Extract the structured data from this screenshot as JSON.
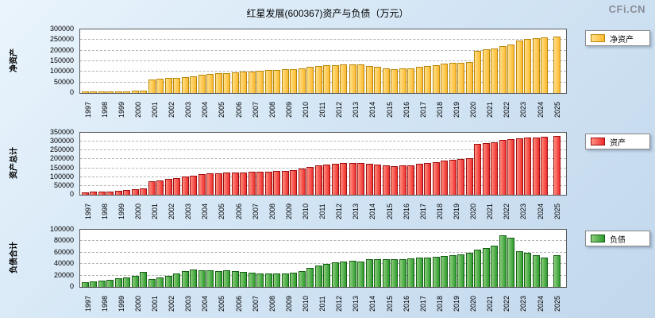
{
  "page": {
    "title": "红星发展(600367)资产与负债（万元）",
    "watermark": "CFi.CN"
  },
  "chart_data": [
    {
      "type": "bar",
      "ylabel": "净资产",
      "legend": "净资产",
      "color_fill": "#ffb92e",
      "color_light": "#ffe089",
      "color_edge": "#b8860b",
      "ylim": [
        0,
        300000
      ],
      "ytick_step": 50000,
      "grid": true,
      "legend_position": "right-top",
      "categories": [
        "1997",
        "1998",
        "1999",
        "2000",
        "2001",
        "2002",
        "2003",
        "2004",
        "2005",
        "2006",
        "2007",
        "2008",
        "2009",
        "2010",
        "2011",
        "2012",
        "2013",
        "2014",
        "2015",
        "2016",
        "2017",
        "2018",
        "2019",
        "2020",
        "2021",
        "2022",
        "2023",
        "2024",
        "2025"
      ],
      "values_per_year": [
        [
          6000,
          6500
        ],
        [
          7000,
          7500
        ],
        [
          8000,
          9000
        ],
        [
          10000,
          11000
        ],
        [
          62000,
          66000
        ],
        [
          70000,
          73000
        ],
        [
          76000,
          80000
        ],
        [
          86000,
          90000
        ],
        [
          93000,
          95000
        ],
        [
          97000,
          100000
        ],
        [
          103000,
          106000
        ],
        [
          108000,
          110000
        ],
        [
          111000,
          114000
        ],
        [
          118000,
          122000
        ],
        [
          127000,
          130000
        ],
        [
          132000,
          134000
        ],
        [
          135000,
          136000
        ],
        [
          128000,
          122000
        ],
        [
          116000,
          114000
        ],
        [
          115000,
          118000
        ],
        [
          123000,
          128000
        ],
        [
          133000,
          138000
        ],
        [
          141000,
          144000
        ],
        [
          146000,
          200000
        ],
        [
          205000,
          210000
        ],
        [
          222000,
          230000
        ],
        [
          248000,
          254000
        ],
        [
          258000,
          263000
        ],
        [
          268000
        ]
      ]
    },
    {
      "type": "bar",
      "ylabel": "资产总计",
      "legend": "资产",
      "color_fill": "#ee2c2c",
      "color_light": "#ff9080",
      "color_edge": "#9c1010",
      "ylim": [
        0,
        350000
      ],
      "ytick_step": 50000,
      "grid": true,
      "legend_position": "right-top",
      "categories": [
        "1997",
        "1998",
        "1999",
        "2000",
        "2001",
        "2002",
        "2003",
        "2004",
        "2005",
        "2006",
        "2007",
        "2008",
        "2009",
        "2010",
        "2011",
        "2012",
        "2013",
        "2014",
        "2015",
        "2016",
        "2017",
        "2018",
        "2019",
        "2020",
        "2021",
        "2022",
        "2023",
        "2024",
        "2025"
      ],
      "values_per_year": [
        [
          14000,
          16000
        ],
        [
          18000,
          20000
        ],
        [
          23000,
          26000
        ],
        [
          30000,
          38000
        ],
        [
          76000,
          82000
        ],
        [
          90000,
          96000
        ],
        [
          104000,
          110000
        ],
        [
          115000,
          119000
        ],
        [
          121000,
          124000
        ],
        [
          125000,
          126000
        ],
        [
          128000,
          130000
        ],
        [
          131000,
          133000
        ],
        [
          135000,
          139000
        ],
        [
          146000,
          155000
        ],
        [
          164000,
          170000
        ],
        [
          175000,
          179000
        ],
        [
          181000,
          181000
        ],
        [
          176000,
          170000
        ],
        [
          165000,
          163000
        ],
        [
          164000,
          168000
        ],
        [
          174000,
          179000
        ],
        [
          186000,
          192000
        ],
        [
          197000,
          201000
        ],
        [
          206000,
          288000
        ],
        [
          292000,
          298000
        ],
        [
          308000,
          315000
        ],
        [
          318000,
          322000
        ],
        [
          324000,
          328000
        ],
        [
          331000
        ]
      ]
    },
    {
      "type": "bar",
      "ylabel": "负债合计",
      "legend": "负债",
      "color_fill": "#2e9b2e",
      "color_light": "#8fce7e",
      "color_edge": "#156015",
      "ylim": [
        0,
        100000
      ],
      "ytick_step": 20000,
      "grid": true,
      "legend_position": "right-top",
      "categories": [
        "1997",
        "1998",
        "1999",
        "2000",
        "2001",
        "2002",
        "2003",
        "2004",
        "2005",
        "2006",
        "2007",
        "2008",
        "2009",
        "2010",
        "2011",
        "2012",
        "2013",
        "2014",
        "2015",
        "2016",
        "2017",
        "2018",
        "2019",
        "2020",
        "2021",
        "2022",
        "2023",
        "2024",
        "2025"
      ],
      "values_per_year": [
        [
          8000,
          9500
        ],
        [
          11000,
          12500
        ],
        [
          15000,
          17000
        ],
        [
          20000,
          27000
        ],
        [
          14000,
          16000
        ],
        [
          20000,
          23000
        ],
        [
          28000,
          30000
        ],
        [
          29000,
          29000
        ],
        [
          28000,
          29000
        ],
        [
          28000,
          26000
        ],
        [
          25000,
          24000
        ],
        [
          23000,
          23000
        ],
        [
          24000,
          25000
        ],
        [
          28000,
          33000
        ],
        [
          37000,
          40000
        ],
        [
          43000,
          45000
        ],
        [
          46000,
          45000
        ],
        [
          48000,
          48000
        ],
        [
          49000,
          49000
        ],
        [
          49000,
          50000
        ],
        [
          51000,
          51000
        ],
        [
          53000,
          54000
        ],
        [
          56000,
          57000
        ],
        [
          60000,
          65000
        ],
        [
          68000,
          72000
        ],
        [
          90000,
          86000
        ],
        [
          63000,
          60000
        ],
        [
          55000,
          52000
        ],
        [
          55000
        ]
      ]
    }
  ]
}
